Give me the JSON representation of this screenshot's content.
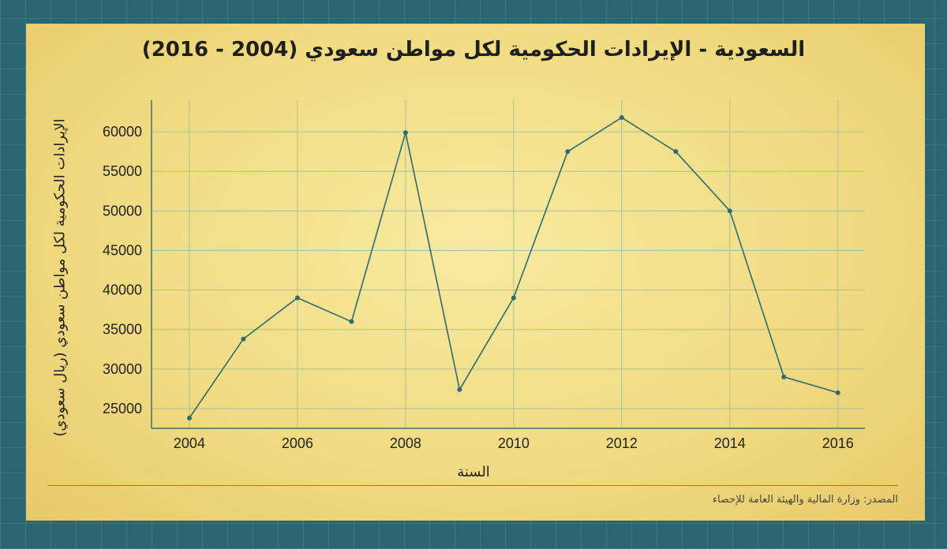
{
  "chart_data": {
    "type": "line",
    "title": "السعودية - الإيرادات الحكومية لكل مواطن سعودي (2004 - 2016)",
    "xlabel": "السنة",
    "ylabel": "الإيرادات الحكومية لكل مواطن سعودي (ريال سعودي)",
    "x": [
      2004,
      2005,
      2006,
      2007,
      2008,
      2009,
      2010,
      2011,
      2012,
      2013,
      2014,
      2015,
      2016
    ],
    "y": [
      23800,
      33800,
      39000,
      36000,
      59900,
      27400,
      39000,
      57500,
      61800,
      57500,
      50000,
      29000,
      27000
    ],
    "xticks": [
      "2004",
      "2006",
      "2008",
      "2010",
      "2012",
      "2014",
      "2016"
    ],
    "yticks": [
      "25000",
      "30000",
      "35000",
      "40000",
      "45000",
      "50000",
      "55000",
      "60000"
    ],
    "xlim": [
      2003.3,
      2016.5
    ],
    "ylim": [
      22500,
      64000
    ],
    "grid": true,
    "legend": "none",
    "colors": {
      "line": "#2f6b6e",
      "grid": "#a8c29a",
      "axis": "#3f6f70"
    }
  },
  "source": "المصدر: وزارة المالية والهيئة العامة للإحصاء"
}
